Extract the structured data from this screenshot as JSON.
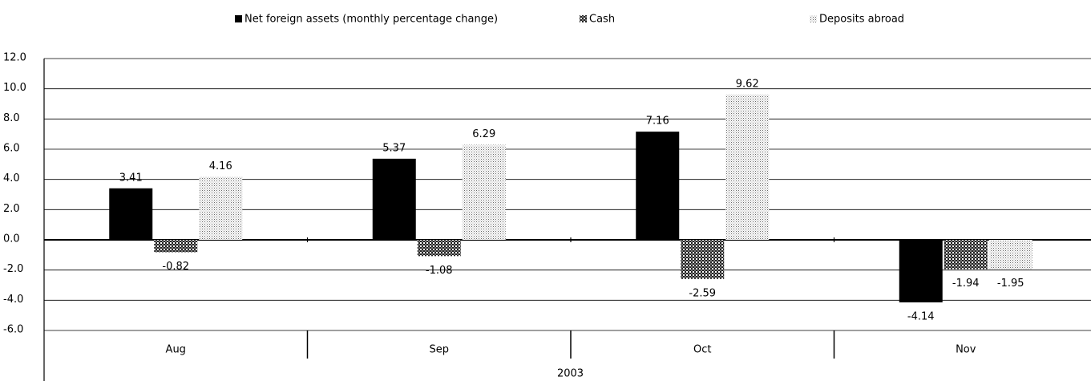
{
  "chart_data": {
    "type": "bar",
    "categories": [
      "Aug",
      "Sep",
      "Oct",
      "Nov"
    ],
    "x_label": "2003",
    "series": [
      {
        "name": "Net foreign assets (monthly percentage change)",
        "color": "#000000",
        "pattern": "solid",
        "values": [
          3.41,
          5.37,
          7.16,
          -4.14
        ]
      },
      {
        "name": "Cash",
        "color": "#444444",
        "pattern": "checker",
        "values": [
          -0.82,
          -1.08,
          -2.59,
          -1.94
        ]
      },
      {
        "name": "Deposits abroad",
        "color": "#9a9a9a",
        "pattern": "dots",
        "values": [
          4.16,
          6.29,
          9.62,
          -1.95
        ]
      }
    ],
    "ylim": [
      -6,
      12
    ],
    "yticks": [
      {
        "value": -6,
        "label": "-6.0"
      },
      {
        "value": -4,
        "label": "-4.0"
      },
      {
        "value": -2,
        "label": "-2.0"
      },
      {
        "value": 0,
        "label": "0.0"
      },
      {
        "value": 2,
        "label": "2.0"
      },
      {
        "value": 4,
        "label": "4.0"
      },
      {
        "value": 6,
        "label": "6.0"
      },
      {
        "value": 8,
        "label": "8.0"
      },
      {
        "value": 10,
        "label": "10.0"
      },
      {
        "value": 12,
        "label": "12.0"
      }
    ],
    "grid": true,
    "legend": "top"
  }
}
